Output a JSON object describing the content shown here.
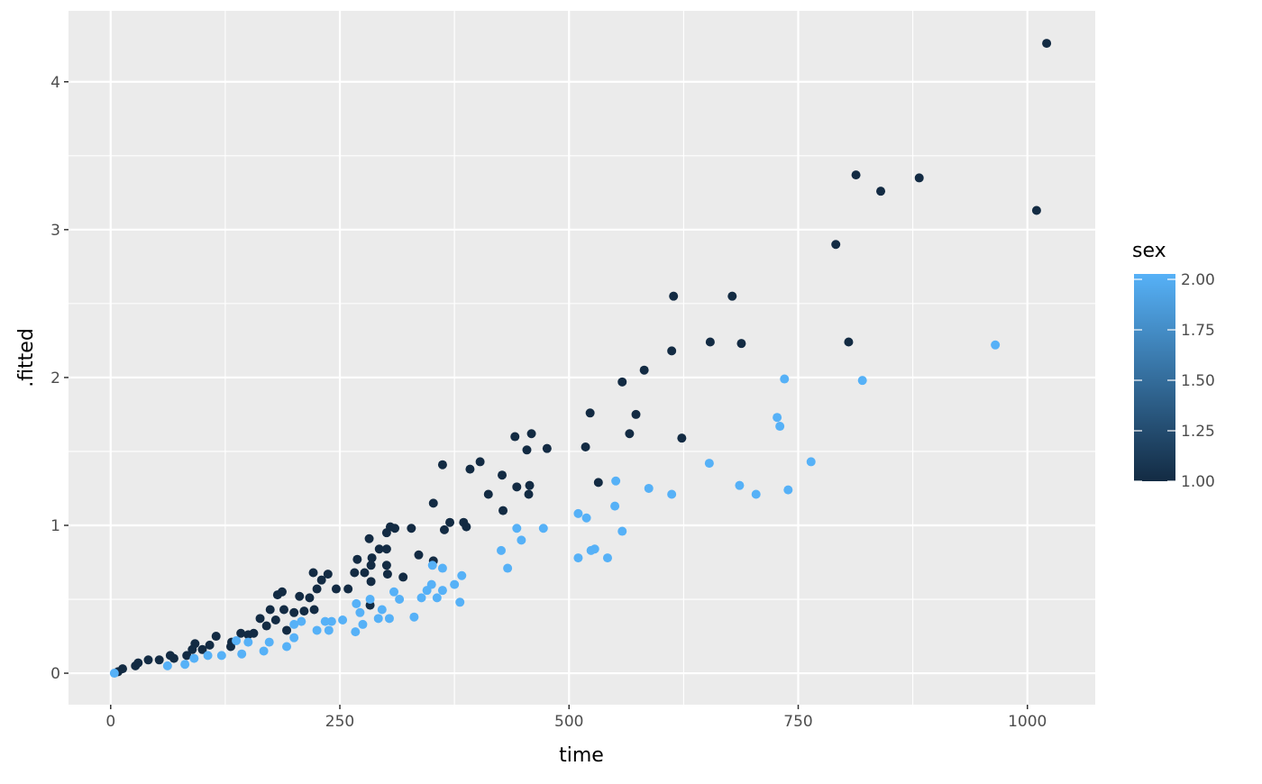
{
  "chart_data": {
    "type": "scatter",
    "xlabel": "time",
    "ylabel": ".fitted",
    "xlim": [
      -46,
      1074
    ],
    "ylim": [
      -0.213,
      4.48
    ],
    "x_ticks": [
      0,
      250,
      500,
      750,
      1000
    ],
    "x_tick_labels": [
      "0",
      "250",
      "500",
      "750",
      "1000"
    ],
    "y_ticks": [
      0,
      1,
      2,
      3,
      4
    ],
    "y_tick_labels": [
      "0",
      "1",
      "2",
      "3",
      "4"
    ],
    "grid": true,
    "legend": {
      "title": "sex",
      "type": "colorbar",
      "placement": "right",
      "range": [
        1.0,
        2.0
      ],
      "ticks": [
        1.0,
        1.25,
        1.5,
        1.75,
        2.0
      ],
      "tick_labels": [
        "1.00",
        "1.25",
        "1.50",
        "1.75",
        "2.00"
      ],
      "low_color": "#132B43",
      "high_color": "#56B1F7"
    },
    "colors": {
      "panel": "#EBEBEB",
      "grid": "#FFFFFF"
    },
    "series": [
      {
        "sex": 1,
        "points": [
          [
            1021,
            4.26
          ],
          [
            813,
            3.37
          ],
          [
            840,
            3.26
          ],
          [
            882,
            3.35
          ],
          [
            1010,
            3.13
          ],
          [
            791,
            2.9
          ],
          [
            614,
            2.55
          ],
          [
            678,
            2.55
          ],
          [
            654,
            2.24
          ],
          [
            688,
            2.23
          ],
          [
            805,
            2.24
          ],
          [
            612,
            2.18
          ],
          [
            582,
            2.05
          ],
          [
            558,
            1.97
          ],
          [
            573,
            1.75
          ],
          [
            523,
            1.76
          ],
          [
            566,
            1.62
          ],
          [
            623,
            1.59
          ],
          [
            459,
            1.62
          ],
          [
            441,
            1.6
          ],
          [
            454,
            1.51
          ],
          [
            476,
            1.52
          ],
          [
            518,
            1.53
          ],
          [
            403,
            1.43
          ],
          [
            392,
            1.38
          ],
          [
            362,
            1.41
          ],
          [
            412,
            1.21
          ],
          [
            427,
            1.34
          ],
          [
            443,
            1.26
          ],
          [
            457,
            1.27
          ],
          [
            456,
            1.21
          ],
          [
            532,
            1.29
          ],
          [
            352,
            1.15
          ],
          [
            428,
            1.1
          ],
          [
            370,
            1.02
          ],
          [
            385,
            1.02
          ],
          [
            388,
            0.99
          ],
          [
            364,
            0.97
          ],
          [
            305,
            0.99
          ],
          [
            310,
            0.98
          ],
          [
            328,
            0.98
          ],
          [
            301,
            0.95
          ],
          [
            336,
            0.8
          ],
          [
            352,
            0.76
          ],
          [
            282,
            0.91
          ],
          [
            222,
            0.43
          ],
          [
            221,
            0.68
          ],
          [
            237,
            0.67
          ],
          [
            230,
            0.63
          ],
          [
            225,
            0.57
          ],
          [
            246,
            0.57
          ],
          [
            259,
            0.57
          ],
          [
            266,
            0.68
          ],
          [
            269,
            0.77
          ],
          [
            277,
            0.68
          ],
          [
            285,
            0.78
          ],
          [
            284,
            0.73
          ],
          [
            293,
            0.84
          ],
          [
            301,
            0.84
          ],
          [
            301,
            0.73
          ],
          [
            284,
            0.62
          ],
          [
            283,
            0.46
          ],
          [
            319,
            0.65
          ],
          [
            302,
            0.67
          ],
          [
            206,
            0.52
          ],
          [
            187,
            0.55
          ],
          [
            182,
            0.53
          ],
          [
            189,
            0.43
          ],
          [
            200,
            0.41
          ],
          [
            211,
            0.42
          ],
          [
            174,
            0.43
          ],
          [
            180,
            0.36
          ],
          [
            163,
            0.37
          ],
          [
            170,
            0.32
          ],
          [
            192,
            0.29
          ],
          [
            156,
            0.27
          ],
          [
            142,
            0.27
          ],
          [
            132,
            0.21
          ],
          [
            115,
            0.25
          ],
          [
            108,
            0.19
          ],
          [
            92,
            0.2
          ],
          [
            83,
            0.12
          ],
          [
            65,
            0.12
          ],
          [
            53,
            0.09
          ],
          [
            27,
            0.05
          ],
          [
            30,
            0.07
          ],
          [
            13,
            0.03
          ],
          [
            8,
            0.01
          ],
          [
            41,
            0.09
          ],
          [
            69,
            0.1
          ],
          [
            89,
            0.16
          ],
          [
            100,
            0.16
          ],
          [
            131,
            0.18
          ],
          [
            150,
            0.26
          ],
          [
            217,
            0.51
          ]
        ]
      },
      {
        "sex": 2,
        "points": [
          [
            965,
            2.22
          ],
          [
            820,
            1.98
          ],
          [
            735,
            1.99
          ],
          [
            727,
            1.73
          ],
          [
            730,
            1.67
          ],
          [
            764,
            1.43
          ],
          [
            739,
            1.24
          ],
          [
            653,
            1.42
          ],
          [
            686,
            1.27
          ],
          [
            704,
            1.21
          ],
          [
            612,
            1.21
          ],
          [
            587,
            1.25
          ],
          [
            551,
            1.3
          ],
          [
            510,
            1.08
          ],
          [
            519,
            1.05
          ],
          [
            550,
            1.13
          ],
          [
            443,
            0.98
          ],
          [
            472,
            0.98
          ],
          [
            448,
            0.9
          ],
          [
            426,
            0.83
          ],
          [
            433,
            0.71
          ],
          [
            524,
            0.83
          ],
          [
            528,
            0.84
          ],
          [
            510,
            0.78
          ],
          [
            542,
            0.78
          ],
          [
            558,
            0.96
          ],
          [
            383,
            0.66
          ],
          [
            351,
            0.73
          ],
          [
            362,
            0.71
          ],
          [
            350,
            0.6
          ],
          [
            375,
            0.6
          ],
          [
            345,
            0.56
          ],
          [
            362,
            0.56
          ],
          [
            356,
            0.51
          ],
          [
            339,
            0.51
          ],
          [
            381,
            0.48
          ],
          [
            331,
            0.38
          ],
          [
            309,
            0.55
          ],
          [
            315,
            0.5
          ],
          [
            283,
            0.5
          ],
          [
            268,
            0.47
          ],
          [
            304,
            0.37
          ],
          [
            292,
            0.37
          ],
          [
            296,
            0.43
          ],
          [
            272,
            0.41
          ],
          [
            275,
            0.33
          ],
          [
            267,
            0.28
          ],
          [
            241,
            0.35
          ],
          [
            234,
            0.35
          ],
          [
            225,
            0.29
          ],
          [
            238,
            0.29
          ],
          [
            208,
            0.35
          ],
          [
            200,
            0.33
          ],
          [
            200,
            0.24
          ],
          [
            192,
            0.18
          ],
          [
            173,
            0.21
          ],
          [
            167,
            0.15
          ],
          [
            150,
            0.21
          ],
          [
            137,
            0.22
          ],
          [
            143,
            0.13
          ],
          [
            121,
            0.12
          ],
          [
            106,
            0.12
          ],
          [
            91,
            0.1
          ],
          [
            81,
            0.06
          ],
          [
            62,
            0.05
          ],
          [
            4,
            0.0
          ],
          [
            253,
            0.36
          ]
        ]
      }
    ]
  }
}
